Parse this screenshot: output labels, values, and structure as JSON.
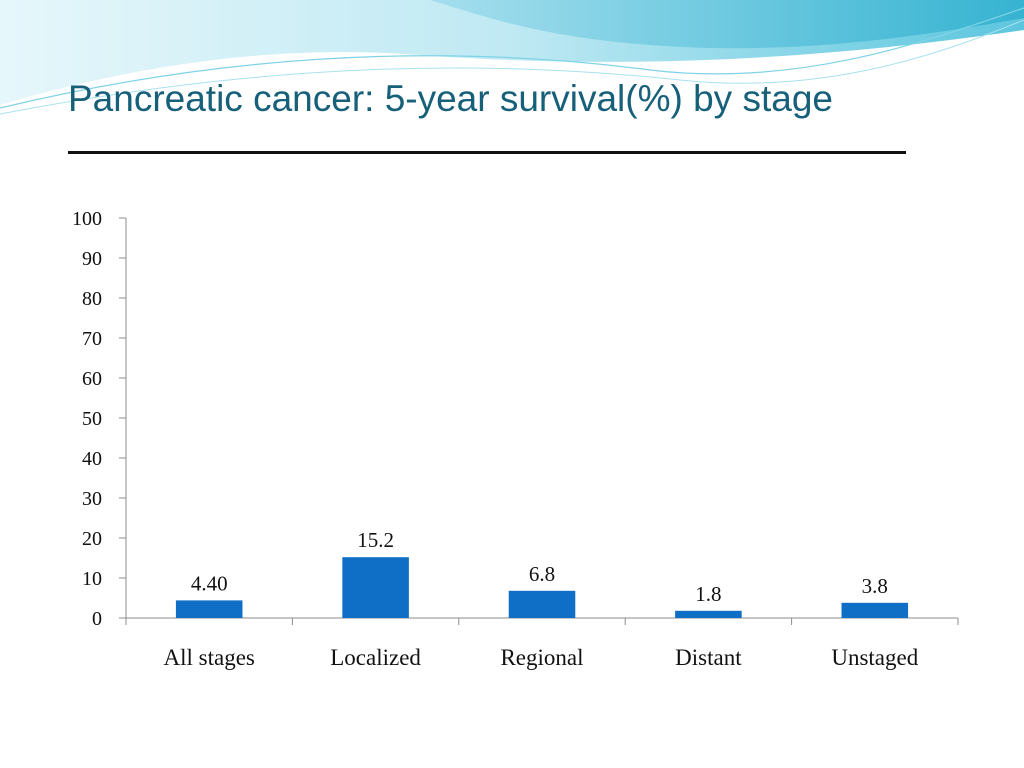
{
  "slide": {
    "title": "Pancreatic cancer: 5-year survival(%) by stage"
  },
  "colors": {
    "title": "#17607a",
    "bar": "#0f6fc6",
    "header_wave_light": "#c9eef5",
    "header_wave_mid": "#7fd3e6",
    "header_wave_dark": "#39b6d3"
  },
  "chart_data": {
    "type": "bar",
    "categories": [
      "All stages",
      "Localized",
      "Regional",
      "Distant",
      "Unstaged"
    ],
    "values": [
      4.4,
      15.2,
      6.8,
      1.8,
      3.8
    ],
    "data_labels": [
      "4.40",
      "15.2",
      "6.8",
      "1.8",
      "3.8"
    ],
    "title": "",
    "xlabel": "",
    "ylabel": "",
    "ylim": [
      0,
      100
    ],
    "yticks": [
      0,
      10,
      20,
      30,
      40,
      50,
      60,
      70,
      80,
      90,
      100
    ],
    "grid": false,
    "legend": "none"
  }
}
